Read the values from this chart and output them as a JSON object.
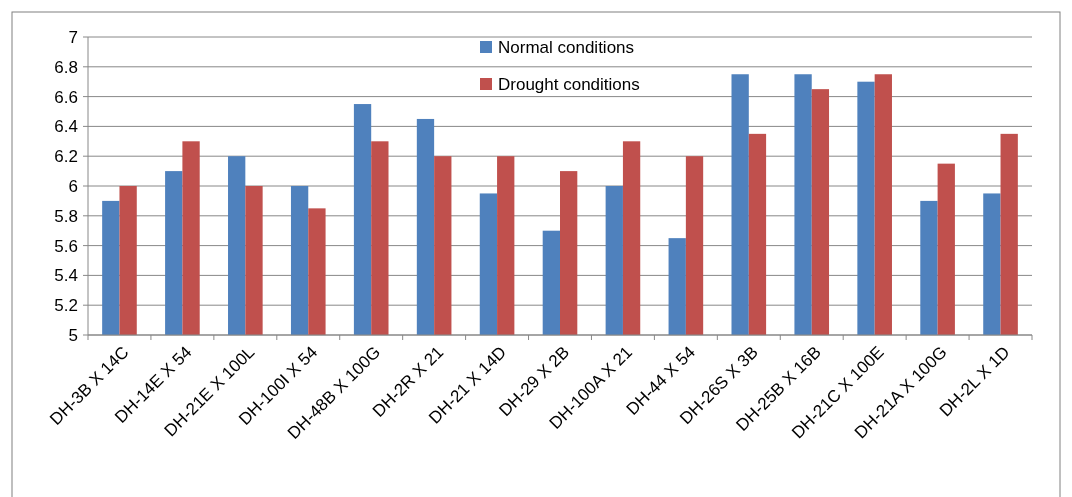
{
  "chart_data": {
    "type": "bar",
    "categories": [
      "DH-3B X 14C",
      "DH-14E X 54",
      "DH-21E X 100L",
      "DH-100I X 54",
      "DH-48B X 100G",
      "DH-2R X 21",
      "DH-21 X 14D",
      "DH-29 X 2B",
      "DH-100A X 21",
      "DH-44 X 54",
      "DH-26S X 3B",
      "DH-25B X 16B",
      "DH-21C X 100E",
      "DH-21A X 100G",
      "DH-2L X 1D"
    ],
    "series": [
      {
        "name": "Normal conditions",
        "color": "#4f81bd",
        "values": [
          5.9,
          6.1,
          6.2,
          6.0,
          6.55,
          6.45,
          5.95,
          5.7,
          6.0,
          5.65,
          6.75,
          6.75,
          6.7,
          5.9,
          5.95
        ]
      },
      {
        "name": "Drought conditions",
        "color": "#c0504d",
        "values": [
          6.0,
          6.3,
          6.0,
          5.85,
          6.3,
          6.2,
          6.2,
          6.1,
          6.3,
          6.2,
          6.35,
          6.65,
          6.75,
          6.15,
          6.35
        ]
      }
    ],
    "ylim": [
      5,
      7
    ],
    "yticks": [
      5,
      5.2,
      5.4,
      5.6,
      5.8,
      "6",
      6.2,
      6.4,
      6.6,
      6.8,
      7
    ],
    "grid": "y",
    "legend": "top"
  }
}
